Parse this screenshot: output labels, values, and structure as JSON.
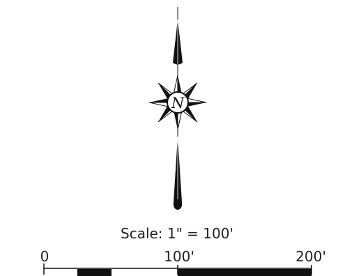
{
  "north_arrow": {
    "letter": "N",
    "icon": "compass-rose-icon"
  },
  "scale": {
    "text": "Scale: 1\" = 100'",
    "ticks": [
      {
        "label": "0"
      },
      {
        "label": "100'"
      },
      {
        "label": "200'"
      }
    ]
  },
  "colors": {
    "ink": "#111111",
    "background": "#ffffff"
  }
}
